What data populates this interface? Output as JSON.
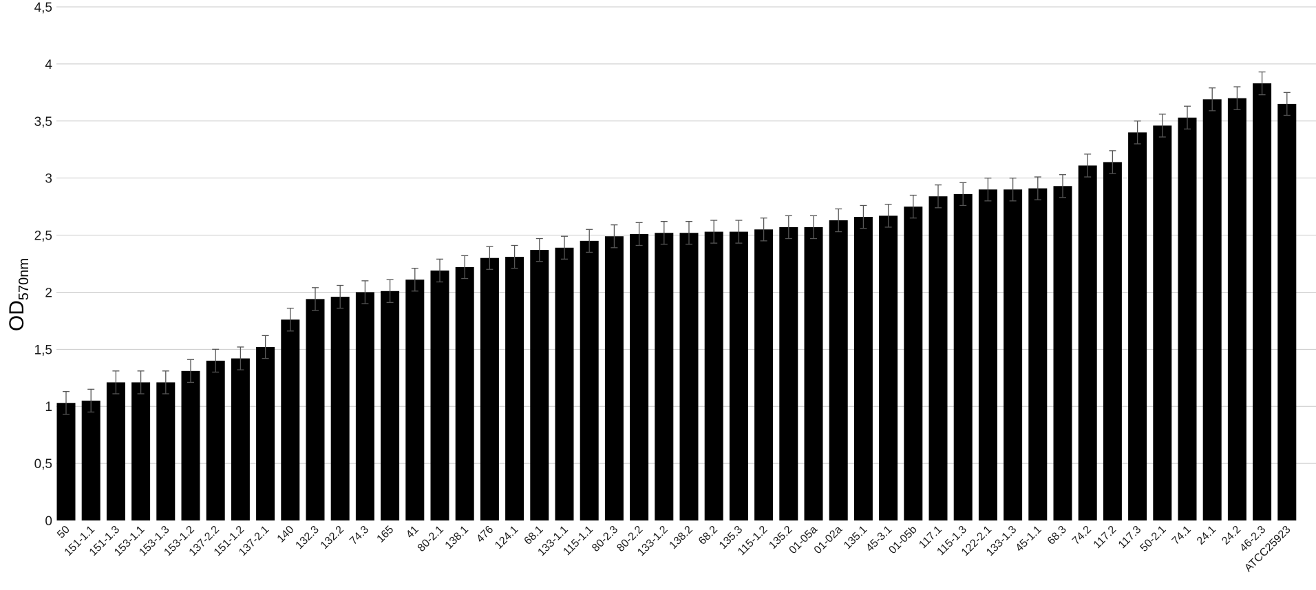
{
  "chart_data": {
    "type": "bar",
    "title": "",
    "xlabel": "",
    "ylabel": "OD",
    "ylabel_subscript": "570nm",
    "ylim": [
      0,
      4.5
    ],
    "yticks": [
      "0",
      "0,5",
      "1",
      "1,5",
      "2",
      "2,5",
      "3",
      "3,5",
      "4",
      "4,5"
    ],
    "grid": true,
    "bar_color": "#000000",
    "error_bar_color": "#555555",
    "categories": [
      "50",
      "151-1.1",
      "151-1.3",
      "153-1.1",
      "153-1.3",
      "153-1.2",
      "137-2.2",
      "151-1.2",
      "137-2.1",
      "140",
      "132.3",
      "132.2",
      "74.3",
      "165",
      "41",
      "80-2.1",
      "138.1",
      "476",
      "124.1",
      "68.1",
      "133-1.1",
      "115-1.1",
      "80-2.3",
      "80-2.2",
      "133-1.2",
      "138.2",
      "68.2",
      "135.3",
      "115-1.2",
      "135.2",
      "01-05a",
      "01-02a",
      "135.1",
      "45-3.1",
      "01-05b",
      "117.1",
      "115-1.3",
      "122-2.1",
      "133-1.3",
      "45-1.1",
      "68.3",
      "74.2",
      "117.2",
      "117.3",
      "50-2.1",
      "74.1",
      "24.1",
      "24.2",
      "46-2.3",
      "ATCC25923"
    ],
    "values": [
      1.03,
      1.05,
      1.21,
      1.21,
      1.21,
      1.31,
      1.4,
      1.42,
      1.52,
      1.76,
      1.94,
      1.96,
      2.0,
      2.01,
      2.11,
      2.19,
      2.22,
      2.3,
      2.31,
      2.37,
      2.39,
      2.45,
      2.49,
      2.51,
      2.52,
      2.52,
      2.53,
      2.53,
      2.55,
      2.57,
      2.57,
      2.63,
      2.66,
      2.67,
      2.75,
      2.84,
      2.86,
      2.9,
      2.9,
      2.91,
      2.93,
      3.11,
      3.14,
      3.4,
      3.46,
      3.53,
      3.69,
      3.7,
      3.83,
      3.65
    ],
    "errors": [
      0.1,
      0.1,
      0.1,
      0.1,
      0.1,
      0.1,
      0.1,
      0.1,
      0.1,
      0.1,
      0.1,
      0.1,
      0.1,
      0.1,
      0.1,
      0.1,
      0.1,
      0.1,
      0.1,
      0.1,
      0.1,
      0.1,
      0.1,
      0.1,
      0.1,
      0.1,
      0.1,
      0.1,
      0.1,
      0.1,
      0.1,
      0.1,
      0.1,
      0.1,
      0.1,
      0.1,
      0.1,
      0.1,
      0.1,
      0.1,
      0.1,
      0.1,
      0.1,
      0.1,
      0.1,
      0.1,
      0.1,
      0.1,
      0.1,
      0.1
    ]
  }
}
